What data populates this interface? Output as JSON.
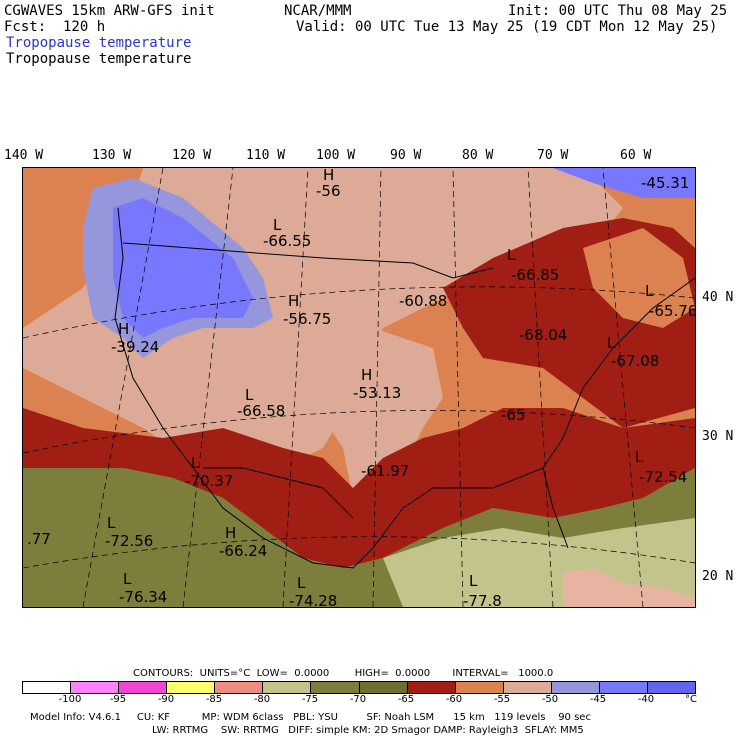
{
  "header": {
    "model": "CGWAVES 15km ARW-GFS init",
    "org": "NCAR/MMM",
    "init": "Init: 00 UTC Thu 08 May 25",
    "fcst": "Fcst:  120 h",
    "valid": "Valid: 00 UTC Tue 13 May 25 (19 CDT Mon 12 May 25)",
    "field_title_1": "Tropopause temperature",
    "field_title_2": "Tropopause temperature"
  },
  "longitude_labels": [
    "140 W",
    "130 W",
    "120 W",
    "110 W",
    "100 W",
    "90 W",
    "80 W",
    "70 W",
    "60 W"
  ],
  "latitude_labels": [
    "40 N",
    "30 N",
    "20 N"
  ],
  "map_annotations": [
    {
      "mark": "H",
      "value": "-56"
    },
    {
      "mark": "L",
      "value": "-66.55"
    },
    {
      "mark": "H",
      "value": "-56.75"
    },
    {
      "mark": "H",
      "value": "-39.24"
    },
    {
      "mark": "L",
      "value": "-66.58"
    },
    {
      "mark": "H",
      "value": "-53.13"
    },
    {
      "mark": "L",
      "value": "-70.37"
    },
    {
      "mark": "",
      "value": "-61.97"
    },
    {
      "mark": "L",
      "value": "-66.85"
    },
    {
      "mark": "",
      "value": "-60.88"
    },
    {
      "mark": "",
      "value": "-68.04"
    },
    {
      "mark": "L",
      "value": "-65.76"
    },
    {
      "mark": "L",
      "value": "-67.08"
    },
    {
      "mark": "",
      "value": "-65"
    },
    {
      "mark": "L",
      "value": "-72.54"
    },
    {
      "mark": "",
      "value": "-45.31"
    },
    {
      "mark": "L",
      "value": "-72.56"
    },
    {
      "mark": "H",
      "value": "-66.24"
    },
    {
      "mark": "L",
      "value": "-76.34"
    },
    {
      "mark": "L",
      "value": "-74.28"
    },
    {
      "mark": "L",
      "value": "-77.8"
    },
    {
      "mark": "",
      "value": ".77"
    }
  ],
  "contours_line": "CONTOURS:  UNITS=°C  LOW=  0.0000        HIGH=  0.0000       INTERVAL=   1000.0",
  "colorbar": {
    "colors": [
      "#ffffff",
      "#ff82ff",
      "#f046d2",
      "#ffff6e",
      "#f08c82",
      "#c3c38c",
      "#7d7d3c",
      "#6e6e32",
      "#a01e14",
      "#dc8250",
      "#dcaa96",
      "#9696dc",
      "#7878ff",
      "#6464f0"
    ],
    "ticks": [
      "-100",
      "-95",
      "-90",
      "-85",
      "-80",
      "-75",
      "-70",
      "-65",
      "-60",
      "-55",
      "-50",
      "-45",
      "-40",
      "°C"
    ]
  },
  "model_info": {
    "line1": "Model Info: V4.6.1     CU: KF          MP: WDM 6class   PBL: YSU         SF: Noah LSM      15 km   119 levels    90 sec",
    "line2": "LW: RRTMG    SW: RRTMG   DIFF: simple KM: 2D Smagor DAMP: Rayleigh3  SFLAY: MM5"
  }
}
